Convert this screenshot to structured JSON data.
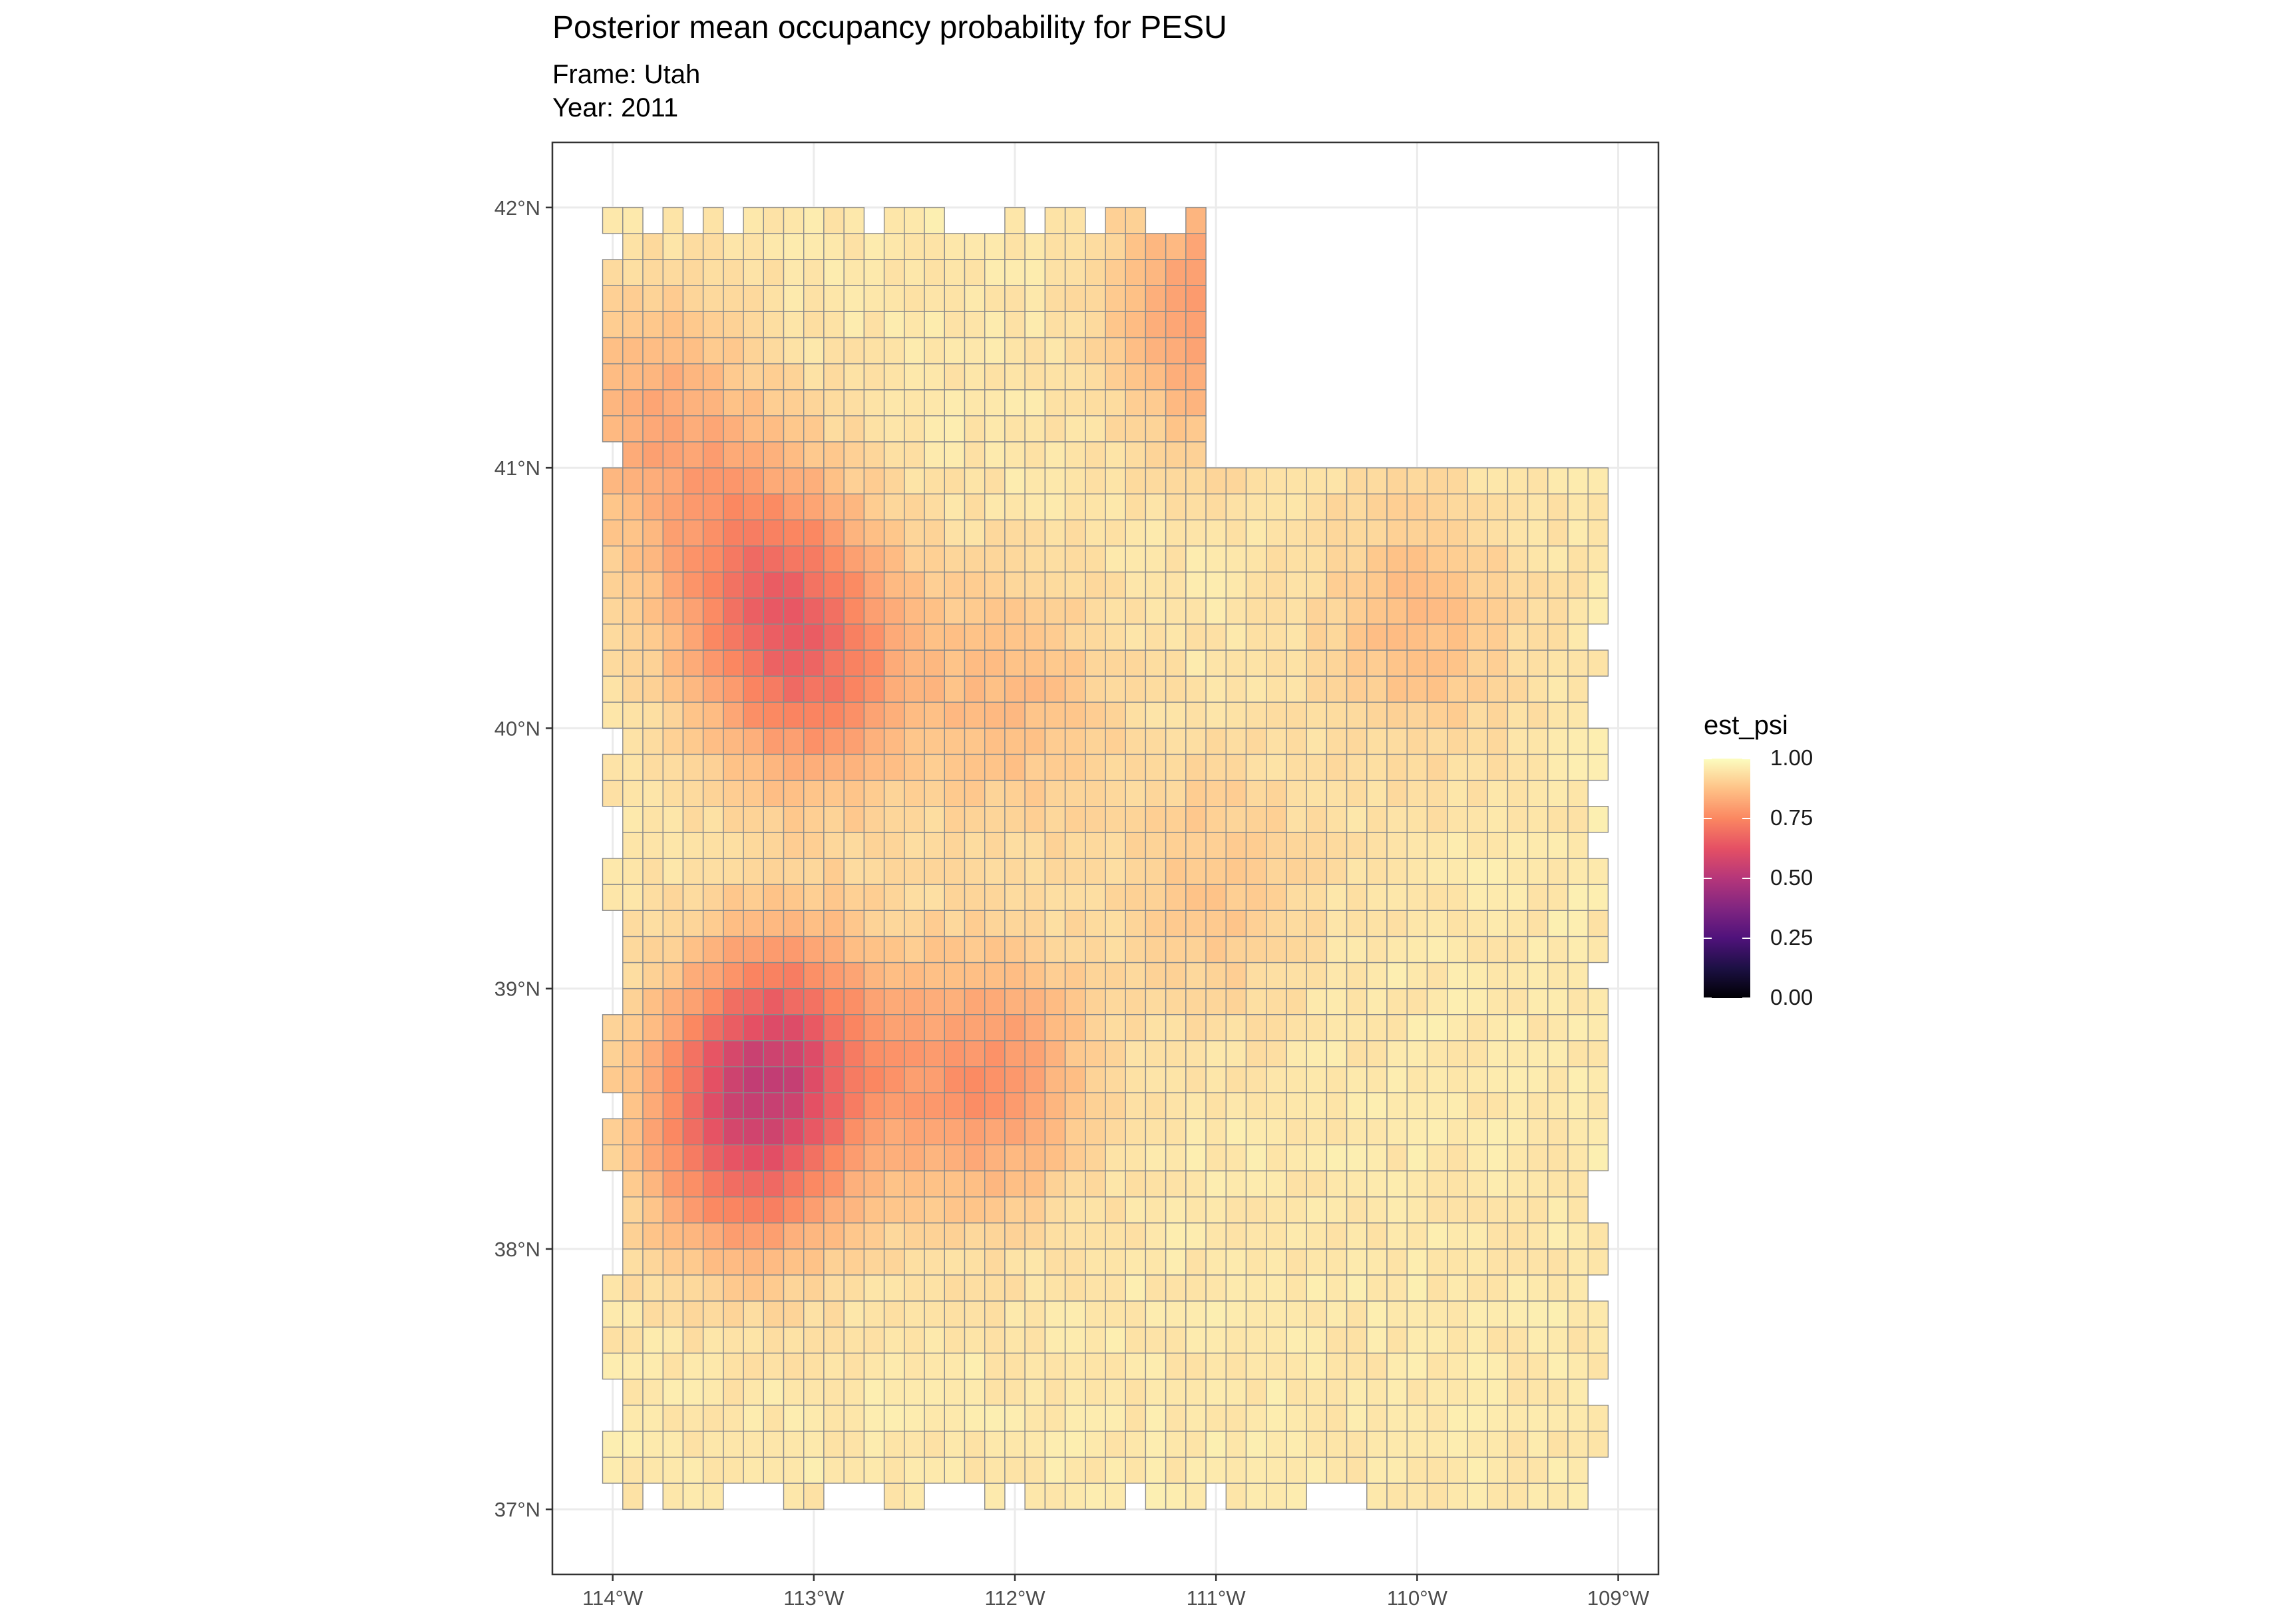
{
  "chart_data": {
    "type": "heatmap",
    "title": "Posterior mean occupancy probability for PESU",
    "subtitle_lines": [
      "Frame: Utah",
      "Year: 2011"
    ],
    "xlabel": "",
    "ylabel": "",
    "x_ticks": [
      "114°W",
      "113°W",
      "112°W",
      "111°W",
      "110°W",
      "109°W"
    ],
    "x_tick_values": [
      -114,
      -113,
      -112,
      -111,
      -110,
      -109
    ],
    "y_ticks": [
      "42°N",
      "41°N",
      "40°N",
      "39°N",
      "38°N",
      "37°N"
    ],
    "y_tick_values": [
      42,
      41,
      40,
      39,
      38,
      37
    ],
    "xlim": [
      -114.3,
      -108.8
    ],
    "ylim": [
      36.75,
      42.25
    ],
    "legend": {
      "title": "est_psi",
      "labels": [
        "1.00",
        "0.75",
        "0.50",
        "0.25",
        "0.00"
      ],
      "range": [
        0,
        1
      ],
      "palette": "magma",
      "position": "right"
    },
    "grid": true,
    "cell_size_deg": 0.1,
    "region": "Utah state grid; notch removed in northeast corner (north of ~41°N, east of ~111°W)",
    "high_occupancy_baseline": 0.97,
    "low_occupancy_hotspots": [
      {
        "lon": -113.15,
        "lat": 38.75,
        "est_psi": 0.72
      },
      {
        "lon": -113.35,
        "lat": 38.45,
        "est_psi": 0.73
      },
      {
        "lon": -113.0,
        "lat": 40.25,
        "est_psi": 0.76
      },
      {
        "lon": -113.3,
        "lat": 40.6,
        "est_psi": 0.8
      },
      {
        "lon": -111.0,
        "lat": 41.6,
        "est_psi": 0.8
      },
      {
        "lon": -112.15,
        "lat": 38.65,
        "est_psi": 0.79
      },
      {
        "lon": -110.0,
        "lat": 40.4,
        "est_psi": 0.88
      },
      {
        "lon": -111.0,
        "lat": 39.4,
        "est_psi": 0.9
      },
      {
        "lon": -113.8,
        "lat": 41.2,
        "est_psi": 0.85
      },
      {
        "lon": -112.0,
        "lat": 40.1,
        "est_psi": 0.88
      }
    ],
    "hotspot_radius_deg": 0.35
  },
  "colors": {
    "panel_border": "#333333",
    "grid_line": "#ebebeb",
    "cell_border": "#8a8a8a"
  }
}
